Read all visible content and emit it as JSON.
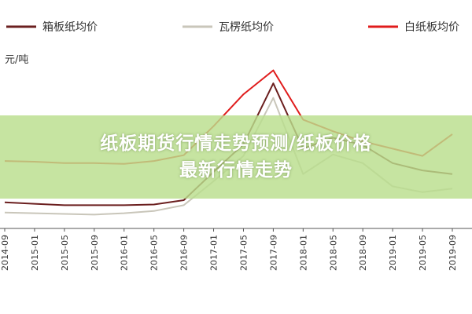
{
  "banner": {
    "line1": "纸板期货行情走势预测/纸板价格",
    "line2": "最新行情走势"
  },
  "chart_data": {
    "type": "line",
    "unit_label": "元/吨",
    "legend_placement": "top",
    "x": [
      "2014-09",
      "2015-01",
      "2015-05",
      "2015-09",
      "2016-01",
      "2016-05",
      "2016-09",
      "2017-01",
      "2017-05",
      "2017-09",
      "2018-01",
      "2018-05",
      "2018-09",
      "2019-01",
      "2019-05",
      "2019-09"
    ],
    "x_tick_labels": [
      "2014-09",
      "2015-01",
      "2015-05",
      "2015-09",
      "2016-01",
      "2016-05",
      "2016-09",
      "2017-01",
      "2017-05",
      "2017-09",
      "2018-01",
      "2018-05",
      "2018-09",
      "2019-01",
      "2019-05",
      "2019-09"
    ],
    "series": [
      {
        "name": "箱板纸均价",
        "color": "#6b1f1f",
        "values": [
          3760,
          3740,
          3720,
          3720,
          3720,
          3730,
          3790,
          4180,
          4560,
          5400,
          4500,
          4650,
          4550,
          4300,
          4200,
          4150
        ]
      },
      {
        "name": "瓦楞纸均价",
        "color": "#c9c6ba",
        "values": [
          3620,
          3610,
          3600,
          3590,
          3610,
          3640,
          3720,
          4050,
          4400,
          5200,
          4150,
          4420,
          4300,
          3980,
          3900,
          3950
        ]
      },
      {
        "name": "白纸板均价",
        "color": "#e01c1c",
        "values": [
          4330,
          4320,
          4300,
          4300,
          4290,
          4330,
          4410,
          4810,
          5250,
          5580,
          4900,
          4740,
          4600,
          4500,
          4400,
          4700
        ]
      }
    ],
    "ylim": [
      3400,
      5900
    ],
    "grid": false
  }
}
